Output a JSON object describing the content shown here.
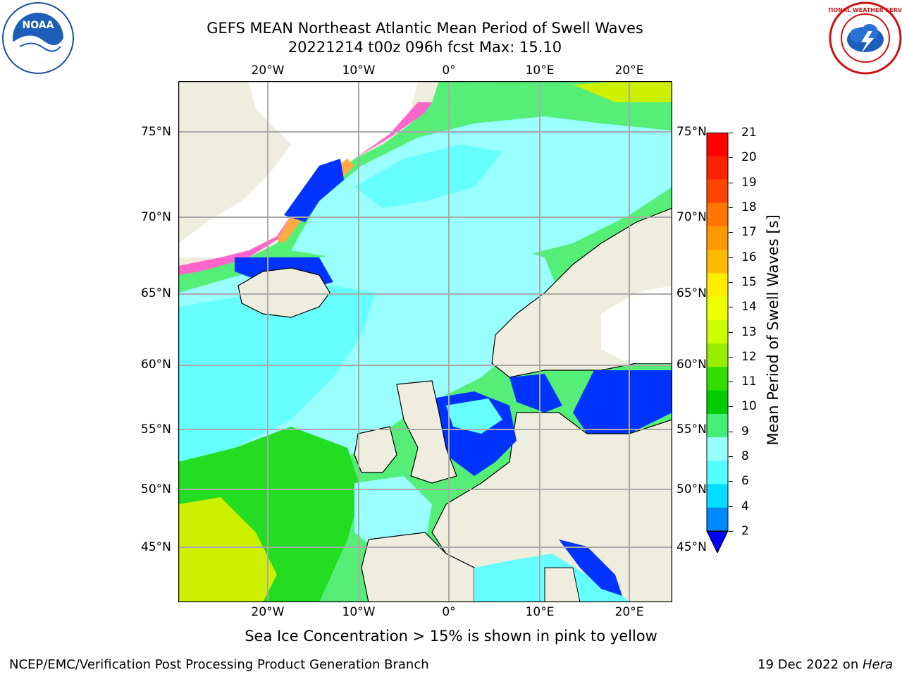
{
  "header": {
    "title_line1": "GEFS MEAN Northeast Atlantic Mean Period of Swell Waves",
    "title_line2": "20221214 t00z 096h fcst   Max: 15.10"
  },
  "map": {
    "lon_labels": [
      "20°W",
      "10°W",
      "0°",
      "10°E",
      "20°E"
    ],
    "lat_labels": [
      "75°N",
      "70°N",
      "65°N",
      "60°N",
      "55°N",
      "50°N",
      "45°N"
    ],
    "colors": {
      "land": "#efedde",
      "ice_land": "#ffffff",
      "ocean_7_8": "#66ffff",
      "ocean_8_9": "#99ffff",
      "ocean_9_10": "#55ee77",
      "ocean_10_11": "#22dd22",
      "ocean_12_13": "#ccf000",
      "ocean_shallow": "#0033ff",
      "grid": "#aaaaaa"
    }
  },
  "colorbar": {
    "label": "Mean Period of Swell Waves [s]",
    "ticks": [
      "21",
      "20",
      "19",
      "18",
      "17",
      "16",
      "15",
      "14",
      "13",
      "12",
      "11",
      "10",
      "9",
      "8",
      "6",
      "4",
      "2"
    ],
    "colors": [
      "#ff0000",
      "#ff2200",
      "#ff4400",
      "#ff7700",
      "#ff9900",
      "#ffbb00",
      "#ffee00",
      "#eeff00",
      "#ccff00",
      "#99ee00",
      "#33dd00",
      "#00cc00",
      "#44ee77",
      "#99ffff",
      "#55ffff",
      "#00ddff",
      "#0088ff",
      "#0000ff"
    ]
  },
  "logos": {
    "left": "noaa-logo",
    "right": "nws-logo"
  },
  "footer": {
    "note": "Sea Ice Concentration > 15% is shown in pink to yellow",
    "left": "NCEP/EMC/Verification Post Processing Product Generation Branch",
    "right_prefix": "19 Dec 2022 on ",
    "right_machine": "Hera"
  }
}
